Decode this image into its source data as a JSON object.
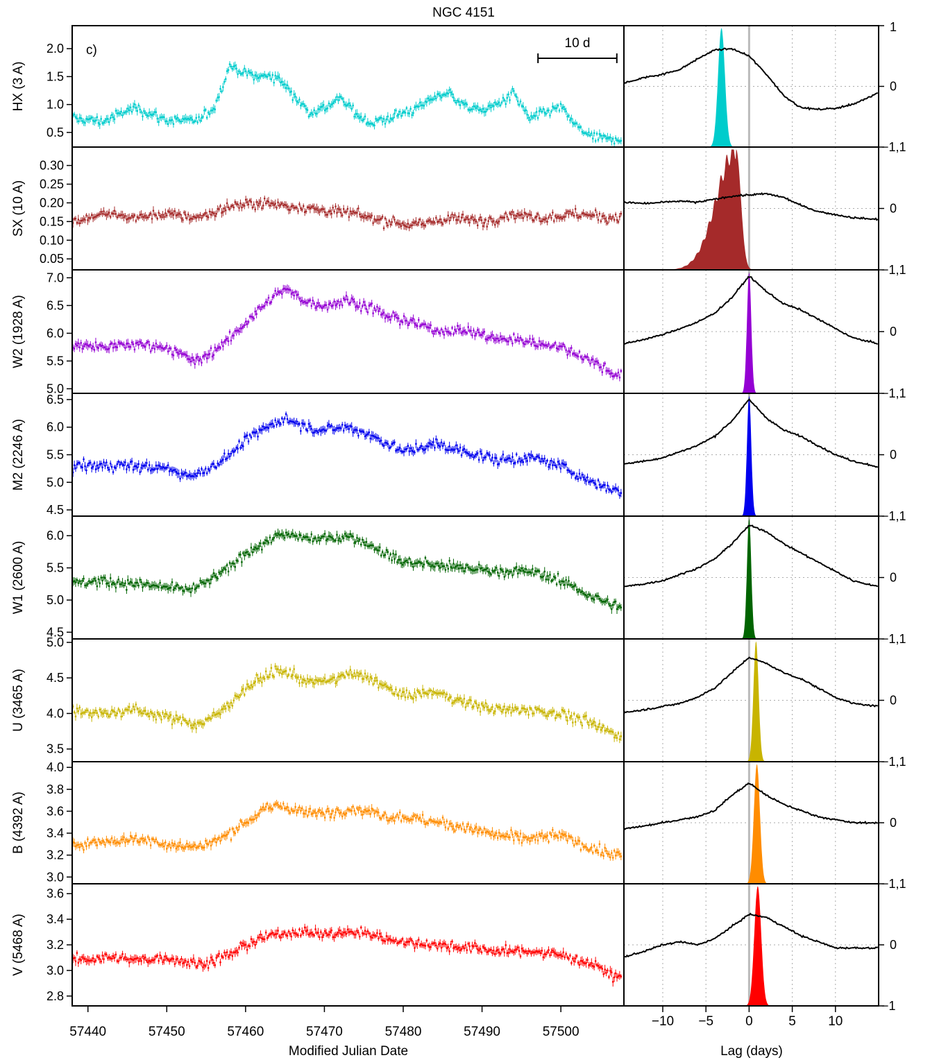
{
  "figure_title": "NGC 4151",
  "panel_letter": "c)",
  "scale_bar_label": "10 d",
  "x_axis_label": "Modified Julian Date",
  "lag_axis_label": "Lag (days)",
  "chart_data": {
    "type": "line",
    "title": "NGC 4151",
    "xlabel": "Modified Julian Date",
    "xlim": [
      57438,
      57508
    ],
    "xticks": [
      "57440",
      "57450",
      "57460",
      "57470",
      "57480",
      "57490",
      "57500"
    ],
    "lag_xlabel": "Lag (days)",
    "lag_xlim": [
      -14.5,
      15
    ],
    "lag_xticks": [
      "−10",
      "−5",
      "0",
      "5",
      "10"
    ],
    "lag_grid": "dotted",
    "scale_bar_days": 10,
    "bands": [
      {
        "name": "HX (3 A)",
        "color": "#00CCCC",
        "ylim": [
          0.3,
          2.35
        ],
        "yticks": [
          "0.5",
          "1.0",
          "1.5",
          "2.0"
        ],
        "ccf_right_labels": [
          "1",
          "0",
          "−1,1"
        ],
        "light_curve": {
          "t": [
            57438,
            57442,
            57446,
            57450,
            57454,
            57456,
            57458,
            57460,
            57462,
            57464,
            57466,
            57468,
            57470,
            57472,
            57474,
            57476,
            57478,
            57480,
            57482,
            57484,
            57486,
            57488,
            57490,
            57492,
            57494,
            57496,
            57498,
            57500,
            57502,
            57504,
            57506
          ],
          "flux": [
            0.75,
            0.7,
            0.95,
            0.72,
            0.7,
            0.95,
            1.7,
            1.55,
            1.5,
            1.5,
            1.2,
            0.85,
            0.95,
            1.1,
            0.85,
            0.65,
            0.75,
            0.85,
            0.95,
            1.15,
            1.2,
            0.95,
            0.9,
            1.0,
            1.2,
            0.75,
            0.85,
            0.95,
            0.6,
            0.4,
            0.38
          ]
        },
        "ccf": {
          "lag": [
            -14.5,
            -12,
            -10,
            -8,
            -6,
            -4,
            -2,
            0,
            2,
            4,
            6,
            8,
            10,
            12,
            15
          ],
          "r": [
            0.05,
            0.15,
            0.2,
            0.28,
            0.45,
            0.6,
            0.62,
            0.5,
            0.2,
            -0.15,
            -0.35,
            -0.38,
            -0.36,
            -0.3,
            -0.1
          ]
        },
        "lag_dist": {
          "peak": -3.2,
          "width": 0.4,
          "skew": 0
        }
      },
      {
        "name": "SX (10 A)",
        "color": "#A52A2A",
        "ylim": [
          0.03,
          0.34
        ],
        "yticks": [
          "0.05",
          "0.10",
          "0.15",
          "0.20",
          "0.25",
          "0.30"
        ],
        "ccf_right_labels": [
          "0",
          "−1,1"
        ],
        "light_curve": {
          "t": [
            57438,
            57442,
            57446,
            57450,
            57454,
            57458,
            57462,
            57466,
            57470,
            57474,
            57478,
            57482,
            57486,
            57490,
            57494,
            57498,
            57502,
            57506
          ],
          "flux": [
            0.15,
            0.17,
            0.16,
            0.17,
            0.16,
            0.19,
            0.2,
            0.19,
            0.18,
            0.17,
            0.15,
            0.14,
            0.16,
            0.15,
            0.17,
            0.16,
            0.17,
            0.16
          ]
        },
        "ccf": {
          "lag": [
            -14.5,
            -12,
            -10,
            -8,
            -6,
            -4,
            -2,
            0,
            2,
            4,
            6,
            8,
            10,
            12,
            15
          ],
          "r": [
            0.1,
            0.08,
            0.1,
            0.12,
            0.1,
            0.15,
            0.2,
            0.22,
            0.24,
            0.18,
            0.05,
            -0.05,
            -0.1,
            -0.15,
            -0.18
          ]
        },
        "lag_dist": {
          "peak": -1.5,
          "width": 0.9,
          "skew": 2.5
        }
      },
      {
        "name": "W2 (1928 A)",
        "color": "#9400D3",
        "ylim": [
          4.98,
          7.08
        ],
        "yticks": [
          "5.0",
          "5.5",
          "6.0",
          "6.5",
          "7.0"
        ],
        "ccf_right_labels": [
          "0",
          "−1,1"
        ],
        "light_curve": {
          "t": [
            57438,
            57442,
            57446,
            57450,
            57452,
            57454,
            57456,
            57458,
            57460,
            57462,
            57464,
            57465,
            57468,
            57470,
            57473,
            57476,
            57478,
            57480,
            57484,
            57488,
            57492,
            57496,
            57500,
            57504,
            57507
          ],
          "flux": [
            5.8,
            5.75,
            5.8,
            5.75,
            5.6,
            5.5,
            5.7,
            5.9,
            6.2,
            6.45,
            6.7,
            6.8,
            6.55,
            6.5,
            6.6,
            6.45,
            6.3,
            6.25,
            6.05,
            6.05,
            5.9,
            5.85,
            5.75,
            5.5,
            5.25
          ]
        },
        "ccf": {
          "lag": [
            -14.5,
            -12,
            -10,
            -8,
            -6,
            -4,
            -2,
            0,
            2,
            4,
            6,
            8,
            10,
            12,
            15
          ],
          "r": [
            -0.2,
            -0.12,
            -0.05,
            0.05,
            0.15,
            0.3,
            0.55,
            0.9,
            0.65,
            0.45,
            0.35,
            0.2,
            0.05,
            -0.1,
            -0.2
          ]
        },
        "lag_dist": {
          "peak": 0.0,
          "width": 0.25,
          "skew": 0
        }
      },
      {
        "name": "M2 (2246 A)",
        "color": "#0000EE",
        "ylim": [
          4.45,
          6.55
        ],
        "yticks": [
          "4.5",
          "5.0",
          "5.5",
          "6.0",
          "6.5"
        ],
        "ccf_right_labels": [
          "0",
          "−1,1"
        ],
        "light_curve": {
          "t": [
            57438,
            57442,
            57446,
            57450,
            57452,
            57454,
            57456,
            57458,
            57460,
            57462,
            57464,
            57465,
            57468,
            57470,
            57473,
            57476,
            57478,
            57480,
            57484,
            57488,
            57492,
            57496,
            57500,
            57504,
            57507
          ],
          "flux": [
            5.3,
            5.3,
            5.3,
            5.25,
            5.15,
            5.15,
            5.3,
            5.5,
            5.75,
            5.95,
            6.1,
            6.15,
            6.0,
            5.95,
            6.0,
            5.85,
            5.7,
            5.55,
            5.7,
            5.55,
            5.4,
            5.45,
            5.3,
            5.0,
            4.85
          ]
        },
        "ccf": {
          "lag": [
            -14.5,
            -12,
            -10,
            -8,
            -6,
            -4,
            -2,
            0,
            2,
            4,
            6,
            8,
            10,
            12,
            15
          ],
          "r": [
            -0.15,
            -0.1,
            -0.05,
            0.05,
            0.15,
            0.3,
            0.55,
            0.9,
            0.6,
            0.4,
            0.3,
            0.15,
            0.0,
            -0.1,
            -0.2
          ]
        },
        "lag_dist": {
          "peak": 0.0,
          "width": 0.25,
          "skew": 0
        }
      },
      {
        "name": "W1 (2600 A)",
        "color": "#006400",
        "ylim": [
          4.45,
          6.25
        ],
        "yticks": [
          "4.5",
          "5.0",
          "5.5",
          "6.0"
        ],
        "ccf_right_labels": [
          "0",
          "−1,1"
        ],
        "light_curve": {
          "t": [
            57438,
            57442,
            57446,
            57450,
            57452,
            57454,
            57456,
            57458,
            57460,
            57462,
            57464,
            57466,
            57468,
            57470,
            57473,
            57476,
            57478,
            57480,
            57484,
            57488,
            57492,
            57496,
            57500,
            57504,
            57507
          ],
          "flux": [
            5.25,
            5.3,
            5.25,
            5.2,
            5.15,
            5.2,
            5.35,
            5.5,
            5.75,
            5.85,
            6.0,
            6.0,
            5.95,
            5.95,
            6.0,
            5.85,
            5.7,
            5.6,
            5.55,
            5.5,
            5.45,
            5.45,
            5.3,
            5.05,
            4.9
          ]
        },
        "ccf": {
          "lag": [
            -14.5,
            -12,
            -10,
            -8,
            -6,
            -4,
            -2,
            0,
            2,
            4,
            6,
            8,
            10,
            12,
            15
          ],
          "r": [
            -0.15,
            -0.1,
            -0.05,
            0.05,
            0.15,
            0.3,
            0.55,
            0.85,
            0.75,
            0.55,
            0.4,
            0.25,
            0.1,
            -0.05,
            -0.15
          ]
        },
        "lag_dist": {
          "peak": 0.0,
          "width": 0.25,
          "skew": 0
        }
      },
      {
        "name": "U (3465 A)",
        "color": "#C8B400",
        "ylim": [
          3.37,
          5.0
        ],
        "yticks": [
          "3.5",
          "4.0",
          "4.5",
          "5.0"
        ],
        "ccf_right_labels": [
          "0",
          "−1,1"
        ],
        "light_curve": {
          "t": [
            57438,
            57442,
            57446,
            57450,
            57452,
            57454,
            57456,
            57458,
            57460,
            57462,
            57464,
            57466,
            57468,
            57470,
            57473,
            57476,
            57478,
            57480,
            57484,
            57488,
            57492,
            57496,
            57500,
            57504,
            57507
          ],
          "flux": [
            4.05,
            4.0,
            4.05,
            3.95,
            3.9,
            3.85,
            3.95,
            4.15,
            4.35,
            4.5,
            4.6,
            4.55,
            4.45,
            4.45,
            4.55,
            4.5,
            4.35,
            4.25,
            4.3,
            4.15,
            4.05,
            4.05,
            4.0,
            3.85,
            3.7
          ]
        },
        "ccf": {
          "lag": [
            -14.5,
            -12,
            -10,
            -8,
            -6,
            -4,
            -2,
            0,
            2,
            4,
            6,
            8,
            10,
            12,
            15
          ],
          "r": [
            -0.2,
            -0.15,
            -0.1,
            -0.05,
            0.05,
            0.2,
            0.45,
            0.7,
            0.6,
            0.45,
            0.35,
            0.2,
            0.05,
            -0.05,
            -0.1
          ]
        },
        "lag_dist": {
          "peak": 0.8,
          "width": 0.3,
          "skew": 0
        }
      },
      {
        "name": "B (4392 A)",
        "color": "#FF8C00",
        "ylim": [
          2.97,
          4.02
        ],
        "yticks": [
          "3.0",
          "3.2",
          "3.4",
          "3.6",
          "3.8",
          "4.0"
        ],
        "ccf_right_labels": [
          "0",
          "−1,1"
        ],
        "light_curve": {
          "t": [
            57438,
            57442,
            57446,
            57450,
            57452,
            57454,
            57456,
            57458,
            57460,
            57462,
            57464,
            57466,
            57468,
            57470,
            57473,
            57476,
            57478,
            57480,
            57484,
            57488,
            57492,
            57496,
            57500,
            57504,
            57507
          ],
          "flux": [
            3.3,
            3.32,
            3.35,
            3.3,
            3.28,
            3.28,
            3.32,
            3.4,
            3.5,
            3.6,
            3.65,
            3.62,
            3.58,
            3.58,
            3.62,
            3.6,
            3.55,
            3.55,
            3.5,
            3.45,
            3.38,
            3.35,
            3.38,
            3.25,
            3.2
          ]
        },
        "ccf": {
          "lag": [
            -14.5,
            -12,
            -10,
            -8,
            -6,
            -4,
            -2,
            0,
            2,
            4,
            6,
            8,
            10,
            12,
            15
          ],
          "r": [
            -0.1,
            -0.05,
            0.0,
            0.05,
            0.1,
            0.2,
            0.45,
            0.65,
            0.45,
            0.3,
            0.2,
            0.1,
            0.05,
            0.0,
            0.0
          ]
        },
        "lag_dist": {
          "peak": 0.9,
          "width": 0.35,
          "skew": 0
        }
      },
      {
        "name": "V (5468 A)",
        "color": "#FF0000",
        "ylim": [
          2.75,
          3.65
        ],
        "yticks": [
          "2.8",
          "3.0",
          "3.2",
          "3.4",
          "3.6"
        ],
        "ccf_right_labels": [
          "0",
          "−1"
        ],
        "light_curve": {
          "t": [
            57438,
            57442,
            57446,
            57450,
            57454,
            57456,
            57458,
            57460,
            57462,
            57464,
            57466,
            57468,
            57470,
            57473,
            57476,
            57478,
            57480,
            57484,
            57488,
            57492,
            57496,
            57500,
            57504,
            57507
          ],
          "flux": [
            3.08,
            3.1,
            3.08,
            3.1,
            3.05,
            3.08,
            3.12,
            3.2,
            3.25,
            3.28,
            3.3,
            3.3,
            3.28,
            3.3,
            3.28,
            3.25,
            3.22,
            3.2,
            3.18,
            3.15,
            3.15,
            3.12,
            3.05,
            2.95
          ]
        },
        "ccf": {
          "lag": [
            -14.5,
            -12,
            -10,
            -8,
            -6,
            -4,
            -2,
            0,
            2,
            4,
            6,
            8,
            10,
            12,
            15
          ],
          "r": [
            -0.2,
            -0.1,
            0.0,
            0.05,
            0.0,
            0.1,
            0.3,
            0.5,
            0.45,
            0.3,
            0.15,
            0.05,
            -0.05,
            -0.05,
            -0.05
          ]
        },
        "lag_dist": {
          "peak": 1.0,
          "width": 0.4,
          "skew": 0
        }
      }
    ]
  }
}
